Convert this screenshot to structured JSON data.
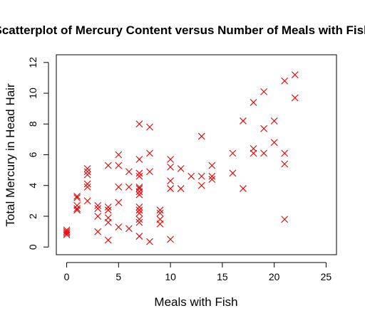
{
  "chart_data": {
    "type": "scatter",
    "title": "Scatterplot of Mercury Content versus Number of Meals with Fish",
    "xlabel": "Meals with Fish",
    "ylabel": "Total Mercury in Head Hair",
    "xlim": [
      -1,
      26
    ],
    "ylim": [
      -0.5,
      12.5
    ],
    "x_ticks": [
      0,
      5,
      10,
      15,
      20,
      25
    ],
    "y_ticks": [
      0,
      2,
      4,
      6,
      8,
      10,
      12
    ],
    "grid": false,
    "legend": "none",
    "marker": "x",
    "marker_color": "#e00000",
    "points": [
      {
        "x": 0,
        "y": 1.1
      },
      {
        "x": 0,
        "y": 0.9
      },
      {
        "x": 0,
        "y": 0.8
      },
      {
        "x": 0,
        "y": 1.0
      },
      {
        "x": 1,
        "y": 3.3
      },
      {
        "x": 1,
        "y": 3.2
      },
      {
        "x": 1,
        "y": 2.7
      },
      {
        "x": 1,
        "y": 2.5
      },
      {
        "x": 1,
        "y": 2.4
      },
      {
        "x": 2,
        "y": 5.1
      },
      {
        "x": 2,
        "y": 4.9
      },
      {
        "x": 2,
        "y": 4.7
      },
      {
        "x": 2,
        "y": 4.1
      },
      {
        "x": 2,
        "y": 3.9
      },
      {
        "x": 2,
        "y": 3.0
      },
      {
        "x": 3,
        "y": 2.7
      },
      {
        "x": 3,
        "y": 2.5
      },
      {
        "x": 3,
        "y": 2.0
      },
      {
        "x": 3,
        "y": 1.0
      },
      {
        "x": 4,
        "y": 5.3
      },
      {
        "x": 4,
        "y": 2.6
      },
      {
        "x": 4,
        "y": 2.4
      },
      {
        "x": 4,
        "y": 1.9
      },
      {
        "x": 4,
        "y": 1.6
      },
      {
        "x": 4,
        "y": 0.45
      },
      {
        "x": 5,
        "y": 6.0
      },
      {
        "x": 5,
        "y": 5.3
      },
      {
        "x": 5,
        "y": 3.9
      },
      {
        "x": 5,
        "y": 2.9
      },
      {
        "x": 5,
        "y": 1.3
      },
      {
        "x": 6,
        "y": 4.9
      },
      {
        "x": 6,
        "y": 3.9
      },
      {
        "x": 6,
        "y": 1.2
      },
      {
        "x": 7,
        "y": 8.0
      },
      {
        "x": 7,
        "y": 5.7
      },
      {
        "x": 7,
        "y": 4.8
      },
      {
        "x": 7,
        "y": 4.6
      },
      {
        "x": 7,
        "y": 3.9
      },
      {
        "x": 7,
        "y": 3.8
      },
      {
        "x": 7,
        "y": 3.6
      },
      {
        "x": 7,
        "y": 3.4
      },
      {
        "x": 7,
        "y": 2.6
      },
      {
        "x": 7,
        "y": 2.4
      },
      {
        "x": 7,
        "y": 2.2
      },
      {
        "x": 7,
        "y": 1.8
      },
      {
        "x": 7,
        "y": 1.6
      },
      {
        "x": 7,
        "y": 0.7
      },
      {
        "x": 8,
        "y": 7.8
      },
      {
        "x": 8,
        "y": 6.1
      },
      {
        "x": 8,
        "y": 4.9
      },
      {
        "x": 8,
        "y": 0.35
      },
      {
        "x": 9,
        "y": 2.4
      },
      {
        "x": 9,
        "y": 2.2
      },
      {
        "x": 9,
        "y": 1.8
      },
      {
        "x": 9,
        "y": 1.5
      },
      {
        "x": 10,
        "y": 5.7
      },
      {
        "x": 10,
        "y": 5.2
      },
      {
        "x": 10,
        "y": 4.3
      },
      {
        "x": 10,
        "y": 3.8
      },
      {
        "x": 10,
        "y": 0.5
      },
      {
        "x": 11,
        "y": 5.1
      },
      {
        "x": 11,
        "y": 3.8
      },
      {
        "x": 12,
        "y": 4.6
      },
      {
        "x": 13,
        "y": 7.2
      },
      {
        "x": 13,
        "y": 4.6
      },
      {
        "x": 13,
        "y": 4.0
      },
      {
        "x": 14,
        "y": 5.3
      },
      {
        "x": 14,
        "y": 4.6
      },
      {
        "x": 14,
        "y": 4.4
      },
      {
        "x": 16,
        "y": 6.1
      },
      {
        "x": 16,
        "y": 4.8
      },
      {
        "x": 17,
        "y": 8.2
      },
      {
        "x": 17,
        "y": 3.8
      },
      {
        "x": 18,
        "y": 9.4
      },
      {
        "x": 18,
        "y": 6.4
      },
      {
        "x": 18,
        "y": 6.1
      },
      {
        "x": 19,
        "y": 10.1
      },
      {
        "x": 19,
        "y": 7.7
      },
      {
        "x": 19,
        "y": 6.1
      },
      {
        "x": 20,
        "y": 8.2
      },
      {
        "x": 20,
        "y": 6.8
      },
      {
        "x": 21,
        "y": 10.8
      },
      {
        "x": 21,
        "y": 6.1
      },
      {
        "x": 21,
        "y": 5.4
      },
      {
        "x": 21,
        "y": 1.8
      },
      {
        "x": 22,
        "y": 11.2
      },
      {
        "x": 22,
        "y": 9.7
      }
    ]
  }
}
